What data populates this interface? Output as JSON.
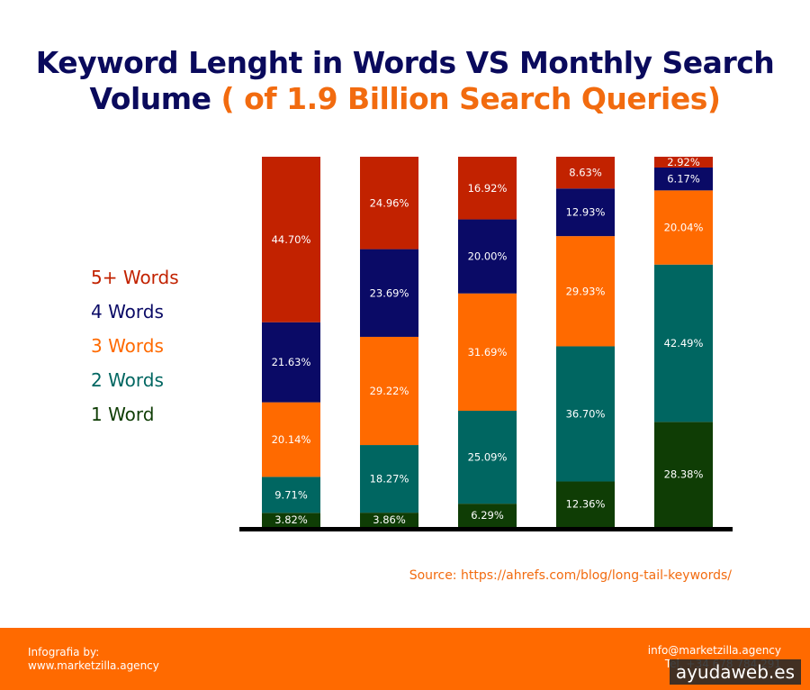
{
  "header": {
    "title_main": "Keyword Lenght in Words VS Monthly Search Volume",
    "title_highlight": "( of 1.9 Billion Search Queries)"
  },
  "colors": {
    "navy": "#0a0a5c",
    "orange": "#f26b0f",
    "footer": "#ff6a00",
    "five_plus": "#c22200",
    "four": "#0a0a66",
    "three": "#ff6a00",
    "two": "#006661",
    "one": "#0f3d05"
  },
  "legend": [
    {
      "label": "5+ Words",
      "color": "#c22200"
    },
    {
      "label": "4 Words",
      "color": "#0a0a66"
    },
    {
      "label": "3 Words",
      "color": "#ff6a00"
    },
    {
      "label": "2 Words",
      "color": "#006661"
    },
    {
      "label": "1 Word",
      "color": "#0f3d05"
    }
  ],
  "chart_data": {
    "type": "bar",
    "stacked": true,
    "ylim": [
      0,
      100
    ],
    "grid": false,
    "legend_position": "left",
    "categories": [
      "",
      "",
      "",
      "",
      ""
    ],
    "series": [
      {
        "name": "1 Word",
        "color": "#0f3d05",
        "values": [
          3.82,
          3.86,
          6.29,
          12.36,
          28.38
        ],
        "labels": [
          "3.82%",
          "3.86%",
          "6.29%",
          "12.36%",
          "28.38%"
        ]
      },
      {
        "name": "2 Words",
        "color": "#006661",
        "values": [
          9.71,
          18.27,
          25.09,
          36.7,
          42.49
        ],
        "labels": [
          "9.71%",
          "18.27%",
          "25.09%",
          "36.70%",
          "42.49%"
        ]
      },
      {
        "name": "3 Words",
        "color": "#ff6a00",
        "values": [
          20.14,
          29.22,
          31.69,
          29.93,
          20.04
        ],
        "labels": [
          "20.14%",
          "29.22%",
          "31.69%",
          "29.93%",
          "20.04%"
        ]
      },
      {
        "name": "4 Words",
        "color": "#0a0a66",
        "values": [
          21.63,
          23.69,
          20.0,
          12.93,
          6.17
        ],
        "labels": [
          "21.63%",
          "23.69%",
          "20.00%",
          "12.93%",
          "6.17%"
        ]
      },
      {
        "name": "5+ Words",
        "color": "#c22200",
        "values": [
          44.7,
          24.96,
          16.92,
          8.63,
          2.92
        ],
        "labels": [
          "44.70%",
          "24.96%",
          "16.92%",
          "8.63%",
          "2.92%"
        ]
      }
    ]
  },
  "source": "Source: https://ahrefs.com/blog/long-tail-keywords/",
  "footer": {
    "credit_label": "Infografia by:",
    "credit_site": "www.marketzilla.agency",
    "email": "info@marketzilla.agency",
    "phone": "Tel. +34 678 784 291"
  },
  "watermark": "ayudaweb.es"
}
